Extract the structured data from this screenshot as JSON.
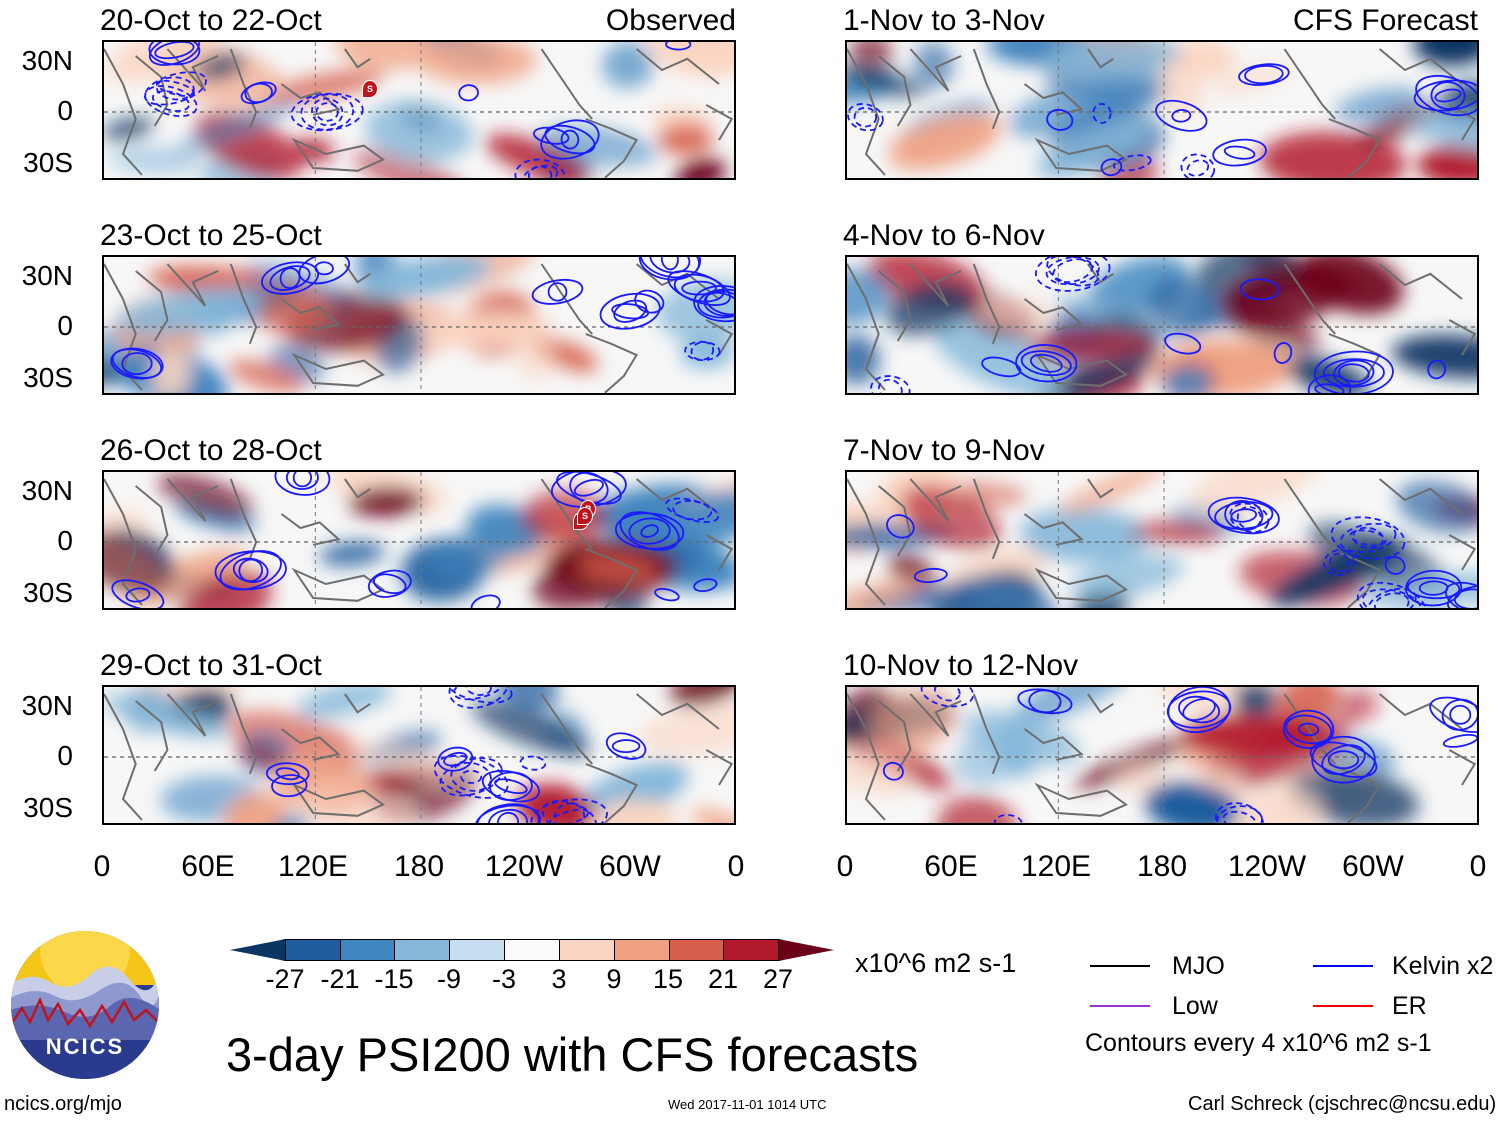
{
  "header": {
    "left_heading": "Observed",
    "right_heading": "CFS Forecast"
  },
  "panels_left": [
    {
      "title": "20-Oct to 22-Oct"
    },
    {
      "title": "23-Oct to 25-Oct"
    },
    {
      "title": "26-Oct to 28-Oct"
    },
    {
      "title": "29-Oct to 31-Oct"
    }
  ],
  "panels_right": [
    {
      "title": "1-Nov to 3-Nov"
    },
    {
      "title": "4-Nov to 6-Nov"
    },
    {
      "title": "7-Nov to 9-Nov"
    },
    {
      "title": "10-Nov to 12-Nov"
    }
  ],
  "axes": {
    "y_ticks": [
      "30N",
      "0",
      "30S"
    ],
    "x_ticks": [
      "0",
      "60E",
      "120E",
      "180",
      "120W",
      "60W",
      "0"
    ]
  },
  "colorbar": {
    "labels": [
      "-27",
      "-21",
      "-15",
      "-9",
      "-3",
      "3",
      "9",
      "15",
      "21",
      "27"
    ],
    "colors": [
      "#0b3563",
      "#1f5d9e",
      "#3f85bf",
      "#86b8da",
      "#c7def0",
      "#fbfbfb",
      "#fbd5c1",
      "#f0a182",
      "#d65f4b",
      "#b1182b",
      "#6b0019"
    ],
    "units": "x10^6 m2 s-1"
  },
  "legend": {
    "items": [
      {
        "label": "MJO",
        "color": "#000000"
      },
      {
        "label": "Kelvin x2",
        "color": "#0000ff"
      },
      {
        "label": "Low",
        "color": "#9932cc"
      },
      {
        "label": "ER",
        "color": "#ff0000"
      }
    ],
    "contour_note": "Contours every 4 x10^6 m2 s-1"
  },
  "footer": {
    "main_title": "3-day PSI200 with CFS forecasts",
    "website": "ncics.org/mjo",
    "timestamp": "Wed 2017-11-01 1014 UTC",
    "credit": "Carl Schreck (cjschrec@ncsu.edu)",
    "logo_text": "NCICS"
  },
  "markers": [
    {
      "panel": "left-0",
      "labels": [
        "S"
      ]
    },
    {
      "panel": "left-2",
      "labels": [
        "P",
        "S",
        "S"
      ]
    }
  ]
}
